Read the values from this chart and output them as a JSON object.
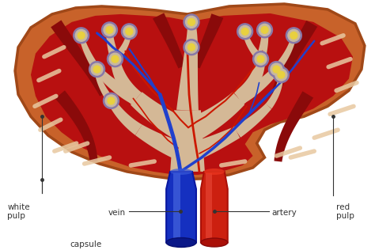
{
  "bg_color": "#ffffff",
  "spleen_outer_color": "#c8622a",
  "red_pulp_color": "#b81010",
  "white_pulp_color": "#d4b896",
  "capsule_color": "#c8622a",
  "vein_color": "#1a3ab8",
  "artery_color": "#e03020",
  "text_color": "#333333",
  "streak_color": "#e8c8a0",
  "nodule_outer": "#8878a8",
  "nodule_mid": "#c8b8a0",
  "nodule_inner": "#e8d040",
  "labels": {
    "white_pulp": "white\npulp",
    "capsule": "capsule",
    "vein": "vein",
    "artery": "artery",
    "red_pulp": "red\npulp"
  },
  "figsize": [
    4.74,
    3.16
  ],
  "dpi": 100
}
